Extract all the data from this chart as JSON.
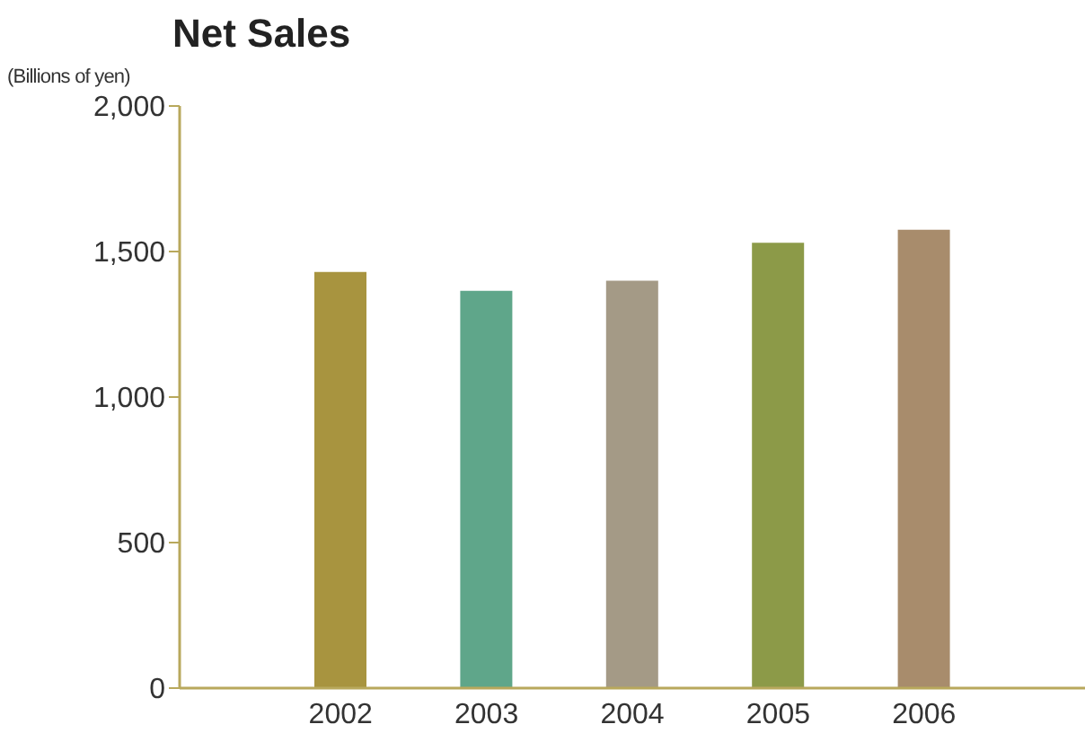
{
  "chart_data": {
    "type": "bar",
    "title": "Net Sales",
    "ylabel": "(Billions of yen)",
    "categories": [
      "2002",
      "2003",
      "2004",
      "2005",
      "2006"
    ],
    "values": [
      1430,
      1365,
      1400,
      1530,
      1575
    ],
    "colors": [
      "#a8943f",
      "#5fa68a",
      "#a49a86",
      "#8c9a48",
      "#a88c6c"
    ],
    "ylim": [
      0,
      2000
    ],
    "yticks": [
      0,
      {
        "value": 500,
        "label": "500"
      },
      {
        "value": 1000,
        "label": "1,000"
      },
      {
        "value": 1500,
        "label": "1,500"
      },
      {
        "value": 2000,
        "label": "2,000"
      }
    ],
    "grid": false,
    "legend": false
  }
}
